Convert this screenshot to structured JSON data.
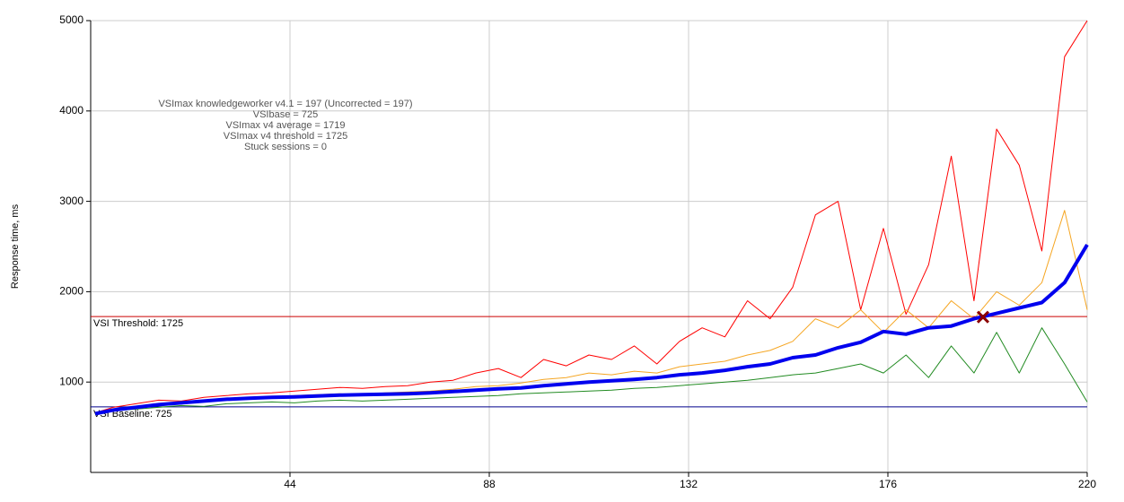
{
  "chart_data": {
    "type": "line",
    "ylabel": "Response time, ms",
    "annotations": [
      "VSImax knowledgeworker v4.1 = 197 (Uncorrected = 197)",
      "VSIbase = 725",
      "VSImax v4 average = 1719",
      "VSImax v4 threshold = 1725",
      "Stuck sessions = 0"
    ],
    "xlim": [
      0,
      220
    ],
    "ylim": [
      0,
      5000
    ],
    "xticks": [
      44,
      88,
      132,
      176,
      220
    ],
    "yticks": [
      1000,
      2000,
      3000,
      4000,
      5000
    ],
    "grid": true,
    "x": [
      1,
      5,
      10,
      15,
      20,
      25,
      30,
      35,
      40,
      45,
      50,
      55,
      60,
      65,
      70,
      75,
      80,
      85,
      90,
      95,
      100,
      105,
      110,
      115,
      120,
      125,
      130,
      135,
      140,
      145,
      150,
      155,
      160,
      165,
      170,
      175,
      180,
      185,
      190,
      195,
      200,
      205,
      210,
      215,
      220
    ],
    "series": [
      {
        "color": "#ff0000",
        "width": 1,
        "values": [
          660,
          720,
          760,
          800,
          790,
          830,
          850,
          870,
          880,
          900,
          920,
          940,
          930,
          950,
          960,
          1000,
          1020,
          1100,
          1150,
          1050,
          1250,
          1180,
          1300,
          1250,
          1400,
          1200,
          1450,
          1600,
          1500,
          1900,
          1700,
          2050,
          2850,
          3000,
          1800,
          2700,
          1750,
          2300,
          3500,
          1900,
          3800,
          3400,
          2450,
          4600,
          5000
        ]
      },
      {
        "color": "#f5a623",
        "width": 1,
        "values": [
          650,
          700,
          730,
          760,
          760,
          800,
          820,
          830,
          830,
          850,
          860,
          870,
          860,
          880,
          890,
          900,
          920,
          950,
          960,
          990,
          1030,
          1050,
          1100,
          1080,
          1120,
          1100,
          1170,
          1200,
          1230,
          1300,
          1350,
          1450,
          1700,
          1600,
          1800,
          1550,
          1800,
          1600,
          1900,
          1700,
          2000,
          1850,
          2100,
          2900,
          1800
        ]
      },
      {
        "color": "#228b22",
        "width": 1,
        "values": [
          640,
          680,
          700,
          720,
          740,
          730,
          760,
          770,
          780,
          770,
          790,
          800,
          790,
          800,
          810,
          820,
          830,
          840,
          850,
          870,
          880,
          890,
          900,
          910,
          930,
          940,
          960,
          980,
          1000,
          1020,
          1050,
          1080,
          1100,
          1150,
          1200,
          1100,
          1300,
          1050,
          1400,
          1100,
          1550,
          1100,
          1600,
          1200,
          780
        ]
      },
      {
        "color": "#0000ee",
        "width": 4,
        "values": [
          650,
          690,
          720,
          750,
          770,
          790,
          810,
          820,
          830,
          835,
          845,
          855,
          860,
          865,
          870,
          880,
          895,
          910,
          925,
          935,
          960,
          980,
          1000,
          1015,
          1030,
          1050,
          1080,
          1100,
          1130,
          1170,
          1200,
          1270,
          1300,
          1380,
          1440,
          1560,
          1530,
          1600,
          1620,
          1700,
          1760,
          1820,
          1880,
          2100,
          2520
        ]
      }
    ],
    "reference_lines": [
      {
        "value": 1725,
        "label": "VSI Threshold: 1725",
        "color": "#cc0000"
      },
      {
        "value": 725,
        "label": "VSI Baseline: 725",
        "color": "#00008b"
      }
    ],
    "marker": {
      "x": 197,
      "y": 1719,
      "color": "#8b0000"
    }
  }
}
